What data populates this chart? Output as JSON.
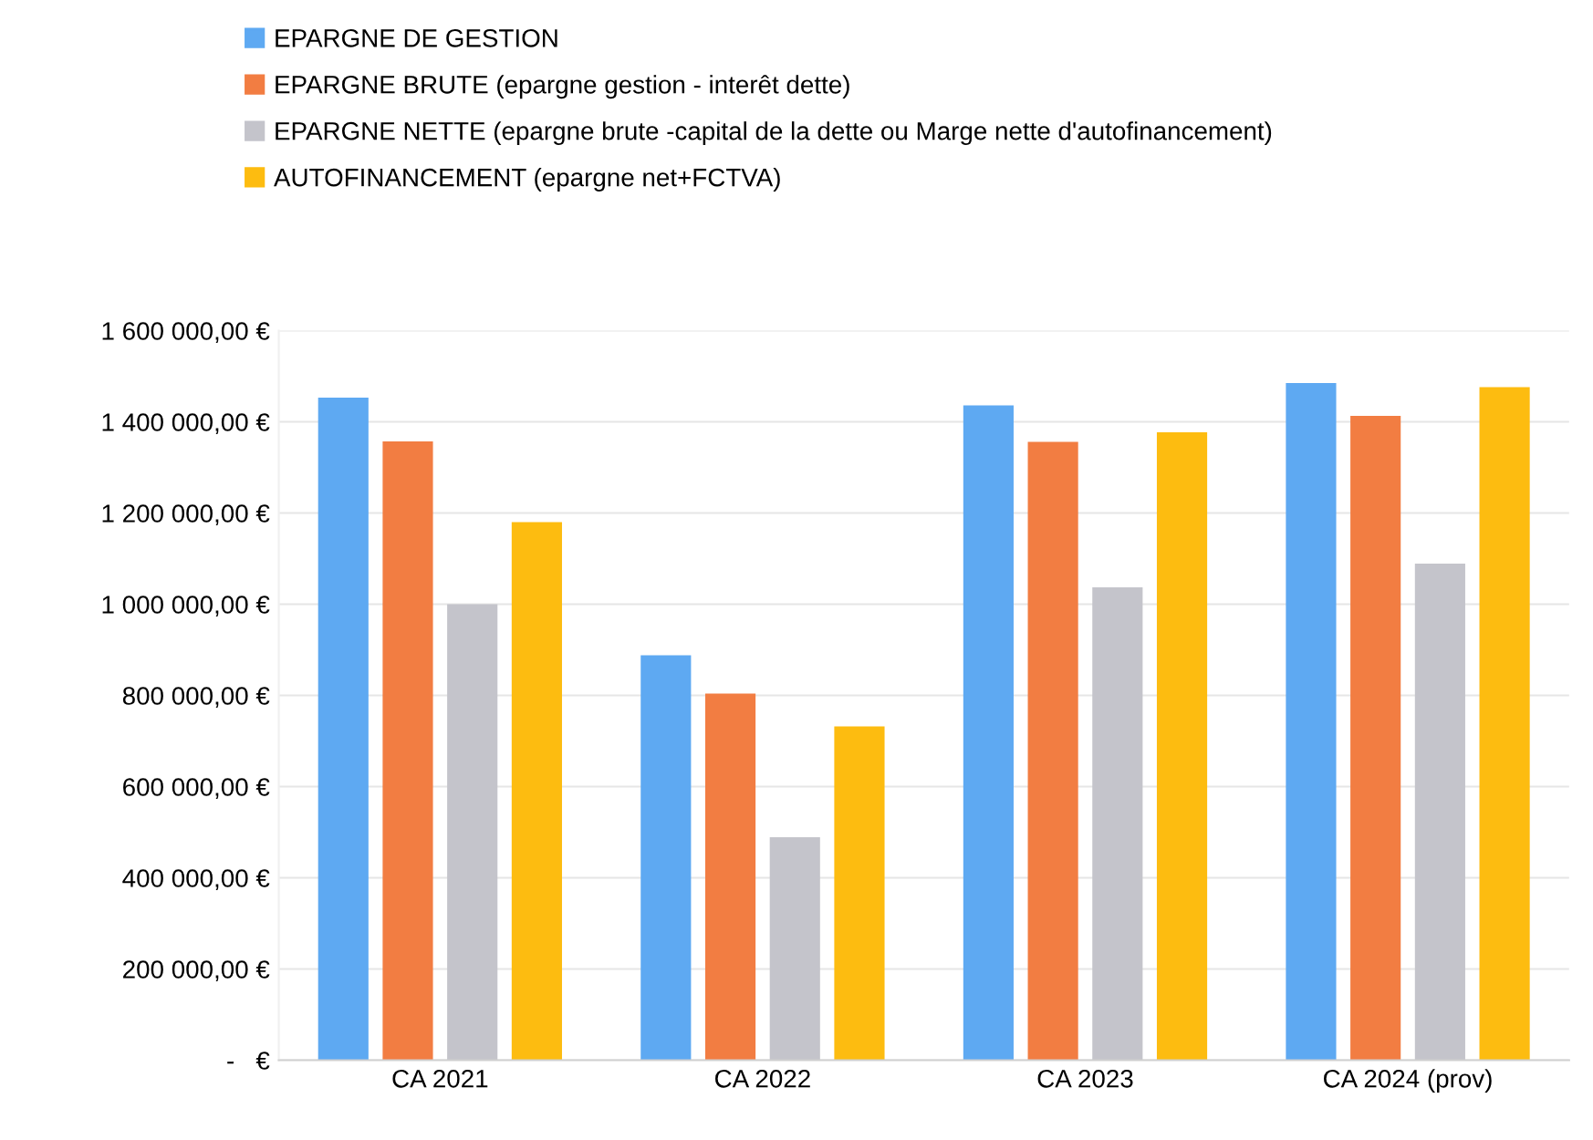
{
  "chart_data": {
    "type": "bar",
    "categories": [
      "CA 2021",
      "CA 2022",
      "CA 2023",
      "CA 2024 (prov)"
    ],
    "series": [
      {
        "name": "EPARGNE DE GESTION",
        "color": "#5ea9f2",
        "values": [
          1453000,
          888000,
          1436000,
          1485000
        ]
      },
      {
        "name": "EPARGNE BRUTE (epargne gestion - interêt dette)",
        "color": "#f27d42",
        "values": [
          1357000,
          804000,
          1356000,
          1413000
        ]
      },
      {
        "name": "EPARGNE NETTE (epargne brute -capital de la dette ou Marge nette d'autofinancement)",
        "color": "#c4c4cb",
        "values": [
          1000000,
          489000,
          1037000,
          1089000
        ]
      },
      {
        "name": "AUTOFINANCEMENT (epargne net+FCTVA)",
        "color": "#fdbc10",
        "values": [
          1180000,
          732000,
          1377000,
          1476000
        ]
      }
    ],
    "ylim": [
      0,
      1600000
    ],
    "yticks": [
      {
        "value": 0,
        "label": "-   €"
      },
      {
        "value": 200000,
        "label": "200 000,00 €"
      },
      {
        "value": 400000,
        "label": "400 000,00 €"
      },
      {
        "value": 600000,
        "label": "600 000,00 €"
      },
      {
        "value": 800000,
        "label": "800 000,00 €"
      },
      {
        "value": 1000000,
        "label": "1 000 000,00 €"
      },
      {
        "value": 1200000,
        "label": "1 200 000,00 €"
      },
      {
        "value": 1400000,
        "label": "1 400 000,00 €"
      },
      {
        "value": 1600000,
        "label": "1 600 000,00 €"
      }
    ],
    "grid": "y",
    "legend": "top"
  }
}
